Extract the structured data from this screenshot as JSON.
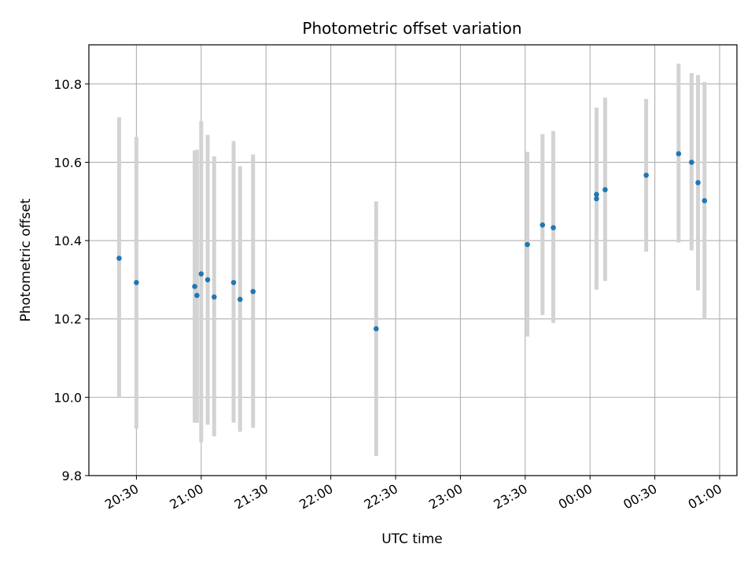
{
  "chart_data": {
    "type": "scatter",
    "title": "Photometric offset variation",
    "xlabel": "UTC time",
    "ylabel": "Photometric offset",
    "x_unit": "UTC time (HH:MM, spanning midnight)",
    "xlim": [
      "20:08",
      "01:08"
    ],
    "ylim": [
      9.8,
      10.9
    ],
    "x_ticks": [
      "20:30",
      "21:00",
      "21:30",
      "22:00",
      "22:30",
      "23:00",
      "23:30",
      "00:00",
      "00:30",
      "01:00"
    ],
    "y_ticks": [
      9.8,
      10.0,
      10.2,
      10.4,
      10.6,
      10.8
    ],
    "grid": true,
    "marker_color": "#1f77b4",
    "errorbar_color": "#d3d3d3",
    "points": [
      {
        "x": "20:22",
        "y": 10.355,
        "err_low": 10.0,
        "err_high": 10.715
      },
      {
        "x": "20:30",
        "y": 10.293,
        "err_low": 9.92,
        "err_high": 10.665
      },
      {
        "x": "20:57",
        "y": 10.283,
        "err_low": 9.935,
        "err_high": 10.63
      },
      {
        "x": "20:58",
        "y": 10.26,
        "err_low": 9.935,
        "err_high": 10.632
      },
      {
        "x": "21:00",
        "y": 10.315,
        "err_low": 9.885,
        "err_high": 10.705
      },
      {
        "x": "21:03",
        "y": 10.3,
        "err_low": 9.93,
        "err_high": 10.67
      },
      {
        "x": "21:06",
        "y": 10.256,
        "err_low": 9.9,
        "err_high": 10.615
      },
      {
        "x": "21:15",
        "y": 10.293,
        "err_low": 9.935,
        "err_high": 10.654
      },
      {
        "x": "21:18",
        "y": 10.25,
        "err_low": 9.912,
        "err_high": 10.59
      },
      {
        "x": "21:24",
        "y": 10.27,
        "err_low": 9.922,
        "err_high": 10.62
      },
      {
        "x": "22:21",
        "y": 10.175,
        "err_low": 9.85,
        "err_high": 10.5
      },
      {
        "x": "23:31",
        "y": 10.39,
        "err_low": 10.155,
        "err_high": 10.627
      },
      {
        "x": "23:38",
        "y": 10.44,
        "err_low": 10.21,
        "err_high": 10.672
      },
      {
        "x": "23:43",
        "y": 10.433,
        "err_low": 10.19,
        "err_high": 10.68
      },
      {
        "x": "00:03",
        "y": 10.507,
        "err_low": 10.275,
        "err_high": 10.74
      },
      {
        "x": "00:03",
        "y": 10.518,
        "err_low": 10.3,
        "err_high": 10.738
      },
      {
        "x": "00:07",
        "y": 10.53,
        "err_low": 10.297,
        "err_high": 10.765
      },
      {
        "x": "00:26",
        "y": 10.567,
        "err_low": 10.372,
        "err_high": 10.762
      },
      {
        "x": "00:41",
        "y": 10.622,
        "err_low": 10.395,
        "err_high": 10.852
      },
      {
        "x": "00:47",
        "y": 10.6,
        "err_low": 10.375,
        "err_high": 10.828
      },
      {
        "x": "00:50",
        "y": 10.548,
        "err_low": 10.273,
        "err_high": 10.823
      },
      {
        "x": "00:53",
        "y": 10.502,
        "err_low": 10.2,
        "err_high": 10.805
      }
    ]
  }
}
